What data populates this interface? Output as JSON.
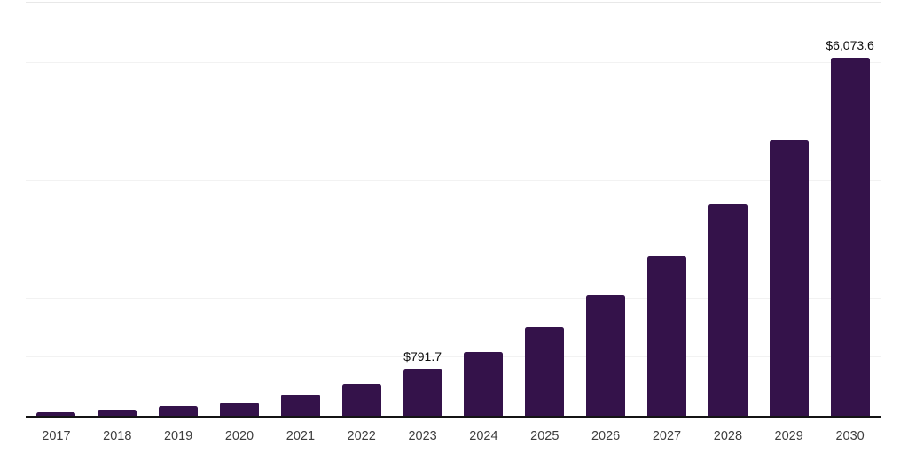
{
  "chart_data": {
    "type": "bar",
    "title": "",
    "xlabel": "",
    "ylabel": "",
    "categories": [
      "2017",
      "2018",
      "2019",
      "2020",
      "2021",
      "2022",
      "2023",
      "2024",
      "2025",
      "2026",
      "2027",
      "2028",
      "2029",
      "2030"
    ],
    "values": [
      60,
      100,
      160,
      220,
      360,
      540,
      791.7,
      1085,
      1505,
      2040,
      2710,
      3585,
      4670,
      6073.6
    ],
    "data_labels": [
      "",
      "",
      "",
      "",
      "",
      "",
      "$791.7",
      "",
      "",
      "",
      "",
      "",
      "",
      "$6,073.6"
    ],
    "ylim": [
      0,
      7000
    ],
    "gridline_interval": 1000,
    "grid": "horizontal",
    "y_axis_tick_labels_visible": false,
    "legend_position": "none",
    "colors": {
      "bar": "#34124a",
      "axis_line": "#141414",
      "gridline": "#f2f2f2",
      "top_border": "#e8e8e8",
      "tick_label": "#3d3d3d",
      "data_label": "#0d0d0d",
      "background": "#ffffff"
    }
  }
}
